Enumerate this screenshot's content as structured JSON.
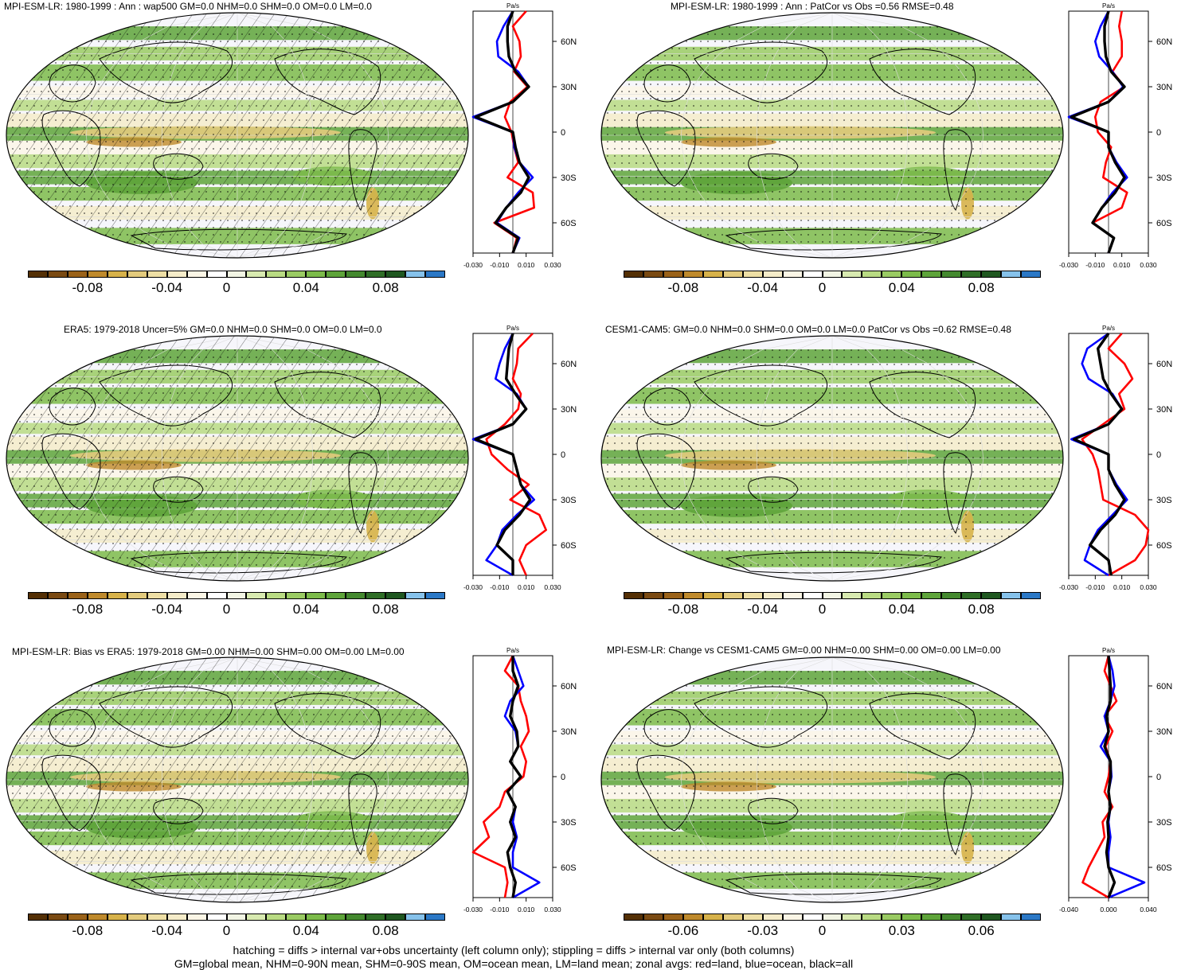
{
  "colors": {
    "land_line": "#ff0000",
    "ocean_line": "#0000ff",
    "all_line": "#000000",
    "colorbar": [
      "#543005",
      "#7a4a12",
      "#9a6219",
      "#bf8a2c",
      "#d7b24a",
      "#e3cb7d",
      "#eedfa5",
      "#f5ecc9",
      "#fbf6e6",
      "#ffffff",
      "#f2f5e4",
      "#d8eab0",
      "#b9db83",
      "#9acb63",
      "#7cbb4a",
      "#5ea43a",
      "#44892f",
      "#2f6e27",
      "#1f5720",
      "#86c2eb",
      "#2b78c6"
    ]
  },
  "panels": [
    {
      "title": "MPI-ESM-LR: 1980-1999 : Ann : wap500 GM=0.0 NHM=0.0 SHM=0.0 OM=0.0 LM=0.0",
      "hatching": true,
      "colorbar_labels": [
        "-0.08",
        "-0.04",
        "0",
        "0.04",
        "0.08"
      ],
      "zonal": {
        "unit": "Pa/s",
        "xticks": [
          "-0.030",
          "-0.010",
          "0.010",
          "0.030"
        ],
        "yticks": [
          "60N",
          "30N",
          "0",
          "30S",
          "60S"
        ]
      }
    },
    {
      "title": "MPI-ESM-LR: 1980-1999 : Ann : PatCor vs Obs =0.56 RMSE=0.48",
      "hatching": false,
      "colorbar_labels": [
        "-0.08",
        "-0.04",
        "0",
        "0.04",
        "0.08"
      ],
      "zonal": {
        "unit": "Pa/s",
        "xticks": [
          "-0.030",
          "-0.010",
          "0.010",
          "0.030"
        ],
        "yticks": [
          "60N",
          "30N",
          "0",
          "30S",
          "60S"
        ]
      }
    },
    {
      "title": "ERA5: 1979-2018 Uncer=5% GM=0.0 NHM=0.0 SHM=0.0 OM=0.0 LM=0.0",
      "hatching": true,
      "colorbar_labels": [
        "-0.08",
        "-0.04",
        "0",
        "0.04",
        "0.08"
      ],
      "zonal": {
        "unit": "Pa/s",
        "xticks": [
          "-0.030",
          "-0.010",
          "0.010",
          "0.030"
        ],
        "yticks": [
          "60N",
          "30N",
          "0",
          "30S",
          "60S"
        ]
      }
    },
    {
      "title": "CESM1-CAM5: GM=0.0 NHM=0.0 SHM=0.0 OM=0.0 LM=0.0 PatCor vs Obs =0.62 RMSE=0.48",
      "hatching": false,
      "colorbar_labels": [
        "-0.08",
        "-0.04",
        "0",
        "0.04",
        "0.08"
      ],
      "zonal": {
        "unit": "Pa/s",
        "xticks": [
          "-0.030",
          "-0.010",
          "0.010",
          "0.030"
        ],
        "yticks": [
          "60N",
          "30N",
          "0",
          "30S",
          "60S"
        ]
      }
    },
    {
      "title": "MPI-ESM-LR: Bias vs ERA5: 1979-2018 GM=0.00 NHM=0.00 SHM=0.00 OM=0.00 LM=0.00",
      "hatching": true,
      "colorbar_labels": [
        "-0.08",
        "-0.04",
        "0",
        "0.04",
        "0.08"
      ],
      "zonal": {
        "unit": "Pa/s",
        "xticks": [
          "-0.030",
          "-0.010",
          "0.010",
          "0.030"
        ],
        "yticks": [
          "60N",
          "30N",
          "0",
          "30S",
          "60S"
        ]
      }
    },
    {
      "title": "MPI-ESM-LR: Change vs CESM1-CAM5 GM=0.00 NHM=0.00 SHM=0.00 OM=0.00 LM=0.00",
      "hatching": false,
      "colorbar_labels": [
        "-0.06",
        "-0.03",
        "0",
        "0.03",
        "0.06"
      ],
      "zonal": {
        "unit": "Pa/s",
        "xticks": [
          "-0.040",
          "0.000",
          "0.040"
        ],
        "yticks": [
          "60N",
          "30N",
          "0",
          "30S",
          "60S"
        ]
      }
    }
  ],
  "footer": [
    "hatching = diffs > internal var+obs uncertainty (left column only); stippling = diffs > internal var only (both columns)",
    "GM=global mean, NHM=0-90N mean, SHM=0-90S mean, OM=ocean mean, LM=land mean; zonal avgs: red=land, blue=ocean, black=all"
  ],
  "chart_data": [
    {
      "type": "heatmap",
      "title": "MPI-ESM-LR: 1980-1999 : Ann : wap500 GM=0.0 NHM=0.0 SHM=0.0 OM=0.0 LM=0.0",
      "colorbar_ticks": [
        -0.08,
        -0.04,
        0,
        0.04,
        0.08
      ],
      "zonal_profile": {
        "unit": "Pa/s",
        "xlim": [
          -0.03,
          0.03
        ],
        "y_lat": [
          80,
          70,
          60,
          50,
          40,
          30,
          20,
          10,
          0,
          -10,
          -20,
          -30,
          -40,
          -50,
          -60,
          -70,
          -80
        ],
        "series": [
          {
            "name": "red=land",
            "values": [
              0.01,
              0.0,
              0.005,
              0.006,
              0.001,
              0.011,
              -0.002,
              -0.006,
              -0.001,
              0.001,
              0.004,
              -0.004,
              0.015,
              0.016,
              -0.014,
              0.003,
              0.0
            ]
          },
          {
            "name": "blue=ocean",
            "values": [
              0.0,
              -0.007,
              -0.012,
              -0.011,
              0.004,
              0.012,
              0.0,
              -0.03,
              0.0,
              0.001,
              0.005,
              0.015,
              0.004,
              -0.005,
              -0.012,
              0.005,
              0.0
            ]
          },
          {
            "name": "black=all",
            "values": [
              0.0,
              -0.004,
              -0.004,
              -0.003,
              0.002,
              0.012,
              0.0,
              -0.028,
              0.0,
              0.002,
              0.005,
              0.012,
              0.006,
              -0.005,
              -0.013,
              0.004,
              0.0
            ]
          }
        ]
      }
    },
    {
      "type": "heatmap",
      "title": "MPI-ESM-LR: 1980-1999 : Ann : PatCor vs Obs =0.56 RMSE=0.48",
      "colorbar_ticks": [
        -0.08,
        -0.04,
        0,
        0.04,
        0.08
      ],
      "zonal_profile": {
        "unit": "Pa/s",
        "xlim": [
          -0.03,
          0.03
        ],
        "y_lat": [
          80,
          70,
          60,
          50,
          40,
          30,
          20,
          10,
          0,
          -10,
          -20,
          -30,
          -40,
          -50,
          -60,
          -70,
          -80
        ],
        "series": [
          {
            "name": "red=land",
            "values": [
              0.01,
              0.008,
              0.01,
              0.01,
              0.003,
              0.012,
              -0.006,
              -0.01,
              -0.008,
              0.002,
              -0.002,
              -0.004,
              0.014,
              0.01,
              -0.012,
              0.004,
              0.0
            ]
          },
          {
            "name": "blue=ocean",
            "values": [
              0.0,
              -0.006,
              -0.01,
              -0.007,
              0.003,
              0.011,
              0.0,
              -0.03,
              0.0,
              0.0,
              0.006,
              0.014,
              0.003,
              -0.005,
              -0.012,
              0.004,
              0.0
            ]
          },
          {
            "name": "black=all",
            "values": [
              0.0,
              -0.003,
              -0.003,
              -0.002,
              0.002,
              0.012,
              0.0,
              -0.028,
              0.0,
              0.0,
              0.005,
              0.012,
              0.005,
              -0.005,
              -0.012,
              0.004,
              0.0
            ]
          }
        ]
      }
    },
    {
      "type": "heatmap",
      "title": "ERA5: 1979-2018 Uncer=5% GM=0.0 NHM=0.0 SHM=0.0 OM=0.0 LM=0.0",
      "colorbar_ticks": [
        -0.08,
        -0.04,
        0,
        0.04,
        0.08
      ],
      "zonal_profile": {
        "unit": "Pa/s",
        "xlim": [
          -0.03,
          0.03
        ],
        "y_lat": [
          80,
          70,
          60,
          50,
          40,
          30,
          20,
          10,
          0,
          -10,
          -20,
          -30,
          -40,
          -50,
          -60,
          -70,
          -80
        ],
        "series": [
          {
            "name": "red=land",
            "values": [
              0.015,
              0.004,
              0.003,
              0.0,
              0.006,
              0.004,
              -0.006,
              -0.02,
              -0.016,
              -0.004,
              0.012,
              -0.002,
              0.02,
              0.025,
              0.01,
              0.005,
              0.01
            ]
          },
          {
            "name": "blue=ocean",
            "values": [
              0.0,
              -0.006,
              -0.01,
              -0.013,
              0.003,
              0.01,
              0.0,
              -0.03,
              0.0,
              0.003,
              0.006,
              0.016,
              0.003,
              -0.008,
              -0.012,
              -0.02,
              0.0
            ]
          },
          {
            "name": "black=all",
            "values": [
              0.0,
              -0.003,
              -0.004,
              -0.005,
              0.002,
              0.01,
              0.0,
              -0.028,
              0.0,
              0.003,
              0.006,
              0.013,
              0.005,
              -0.006,
              -0.012,
              0.0,
              0.0
            ]
          }
        ]
      }
    },
    {
      "type": "heatmap",
      "title": "CESM1-CAM5: GM=0.0 NHM=0.0 SHM=0.0 OM=0.0 LM=0.0 PatCor vs Obs =0.62 RMSE=0.48",
      "colorbar_ticks": [
        -0.08,
        -0.04,
        0,
        0.04,
        0.08
      ],
      "zonal_profile": {
        "unit": "Pa/s",
        "xlim": [
          -0.03,
          0.03
        ],
        "y_lat": [
          80,
          70,
          60,
          50,
          40,
          30,
          20,
          10,
          0,
          -10,
          -20,
          -30,
          -40,
          -50,
          -60,
          -70,
          -80
        ],
        "series": [
          {
            "name": "red=land",
            "values": [
              0.01,
              0.0,
              0.012,
              0.018,
              0.008,
              0.012,
              -0.004,
              -0.02,
              -0.012,
              -0.008,
              -0.006,
              -0.004,
              0.02,
              0.03,
              0.028,
              0.02,
              0.0
            ]
          },
          {
            "name": "blue=ocean",
            "values": [
              0.0,
              -0.016,
              -0.02,
              -0.015,
              0.003,
              0.01,
              0.0,
              -0.028,
              0.0,
              0.0,
              0.006,
              0.014,
              0.003,
              -0.008,
              -0.014,
              -0.018,
              0.0
            ]
          },
          {
            "name": "black=all",
            "values": [
              0.0,
              -0.008,
              -0.006,
              -0.004,
              0.002,
              0.01,
              0.0,
              -0.026,
              0.0,
              0.0,
              0.005,
              0.012,
              0.005,
              -0.006,
              -0.014,
              0.0,
              0.002
            ]
          }
        ]
      }
    },
    {
      "type": "heatmap",
      "title": "MPI-ESM-LR: Bias vs ERA5: 1979-2018 GM=0.00 NHM=0.00 SHM=0.00 OM=0.00 LM=0.00",
      "colorbar_ticks": [
        -0.08,
        -0.04,
        0,
        0.04,
        0.08
      ],
      "zonal_profile": {
        "unit": "Pa/s",
        "xlim": [
          -0.03,
          0.03
        ],
        "y_lat": [
          80,
          70,
          60,
          50,
          40,
          30,
          20,
          10,
          0,
          -10,
          -20,
          -30,
          -40,
          -50,
          -60,
          -70,
          -80
        ],
        "series": [
          {
            "name": "red=land",
            "values": [
              0.0,
              -0.006,
              0.004,
              0.006,
              0.01,
              0.012,
              0.006,
              0.01,
              0.008,
              -0.006,
              -0.01,
              -0.022,
              -0.018,
              -0.03,
              -0.006,
              -0.004,
              -0.006
            ]
          },
          {
            "name": "blue=ocean",
            "values": [
              0.0,
              0.004,
              0.008,
              -0.002,
              -0.006,
              0.002,
              0.004,
              -0.002,
              0.006,
              -0.004,
              0.002,
              0.0,
              0.003,
              0.0,
              0.0,
              0.02,
              0.0
            ]
          },
          {
            "name": "black=all",
            "values": [
              0.0,
              0.0,
              0.004,
              0.0,
              -0.002,
              0.003,
              0.004,
              -0.002,
              0.006,
              -0.004,
              0.002,
              -0.002,
              0.002,
              -0.004,
              -0.002,
              0.002,
              0.0
            ]
          }
        ]
      }
    },
    {
      "type": "heatmap",
      "title": "MPI-ESM-LR: Change vs CESM1-CAM5 GM=0.00 NHM=0.00 SHM=0.00 OM=0.00 LM=0.00",
      "colorbar_ticks": [
        -0.06,
        -0.03,
        0,
        0.03,
        0.06
      ],
      "zonal_profile": {
        "unit": "Pa/s",
        "xlim": [
          -0.04,
          0.04
        ],
        "y_lat": [
          80,
          70,
          60,
          50,
          40,
          30,
          20,
          10,
          0,
          -10,
          -20,
          -30,
          -40,
          -50,
          -60,
          -70,
          -80
        ],
        "series": [
          {
            "name": "red=land",
            "values": [
              0.0,
              -0.004,
              0.002,
              0.008,
              -0.004,
              0.004,
              -0.003,
              0.002,
              0.0,
              -0.004,
              0.004,
              -0.006,
              -0.004,
              -0.012,
              -0.02,
              -0.026,
              0.0
            ]
          },
          {
            "name": "blue=ocean",
            "values": [
              0.0,
              0.004,
              0.006,
              0.002,
              -0.004,
              0.0,
              -0.008,
              0.002,
              0.003,
              0.0,
              0.002,
              0.0,
              0.002,
              0.0,
              0.0,
              0.036,
              0.0
            ]
          },
          {
            "name": "black=all",
            "values": [
              0.0,
              0.001,
              0.002,
              0.002,
              -0.002,
              0.0,
              -0.004,
              0.002,
              0.002,
              0.0,
              0.002,
              -0.001,
              0.0,
              -0.002,
              0.0,
              0.006,
              0.0
            ]
          }
        ]
      }
    }
  ]
}
